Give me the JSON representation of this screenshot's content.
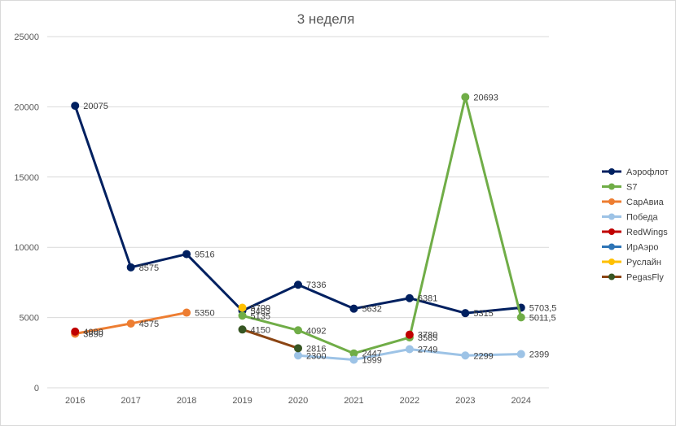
{
  "chart_data": {
    "type": "line",
    "title": "3 неделя",
    "xlabel": "",
    "ylabel": "",
    "x": [
      "2016",
      "2017",
      "2018",
      "2019",
      "2020",
      "2021",
      "2022",
      "2023",
      "2024"
    ],
    "ylim": [
      0,
      25000
    ],
    "yticks": [
      "0",
      "5000",
      "10000",
      "15000",
      "20000",
      "25000"
    ],
    "grid": true,
    "legend_position": "right",
    "series": [
      {
        "name": "Аэрофлот",
        "color": "#002060",
        "values": [
          20075,
          8575,
          9516,
          5483,
          7336,
          5632,
          6381,
          5315,
          5703.5
        ],
        "labels": [
          "20075",
          "8575",
          "9516",
          "5483",
          "7336",
          "5632",
          "6381",
          "5315",
          "5703,5"
        ]
      },
      {
        "name": "S7",
        "color": "#70ad47",
        "values": [
          null,
          null,
          null,
          5135,
          4092,
          2447,
          3585,
          20693,
          5011.5
        ],
        "labels": [
          null,
          null,
          null,
          "5135",
          "4092",
          "2447",
          "3585",
          "20693",
          "5011,5"
        ]
      },
      {
        "name": "СарАвиа",
        "color": "#ed7d31",
        "values": [
          3850,
          4575,
          5350,
          null,
          null,
          null,
          null,
          null,
          null
        ],
        "labels": [
          "3850",
          "4575",
          "5350",
          null,
          null,
          null,
          null,
          null,
          null
        ]
      },
      {
        "name": "Победа",
        "color": "#9dc3e6",
        "values": [
          null,
          null,
          null,
          null,
          2300,
          1999,
          2749,
          2299,
          2399
        ],
        "labels": [
          null,
          null,
          null,
          null,
          "2300",
          "1999",
          "2749",
          "2299",
          "2399"
        ]
      },
      {
        "name": "RedWings",
        "color": "#c00000",
        "values": [
          4000,
          null,
          null,
          null,
          null,
          null,
          3780,
          null,
          null
        ],
        "labels": [
          "4000",
          null,
          null,
          null,
          null,
          null,
          "3780",
          null,
          null
        ]
      },
      {
        "name": "ИрАэро",
        "color": "#2e75b6",
        "values": [
          null,
          null,
          null,
          null,
          null,
          null,
          null,
          null,
          null
        ],
        "labels": [
          null,
          null,
          null,
          null,
          null,
          null,
          null,
          null,
          null
        ]
      },
      {
        "name": "Руслайн",
        "color": "#ffc000",
        "values": [
          null,
          null,
          null,
          5700,
          null,
          null,
          null,
          null,
          null
        ],
        "labels": [
          null,
          null,
          null,
          "5700",
          null,
          null,
          null,
          null,
          null
        ]
      },
      {
        "name": "PegasFly",
        "color": "#8b4513",
        "values": [
          null,
          null,
          null,
          4150,
          2816,
          null,
          null,
          null,
          null
        ],
        "labels": [
          null,
          null,
          null,
          "4150",
          "2816",
          null,
          null,
          null,
          null
        ],
        "marker_color": "#375623"
      }
    ]
  }
}
